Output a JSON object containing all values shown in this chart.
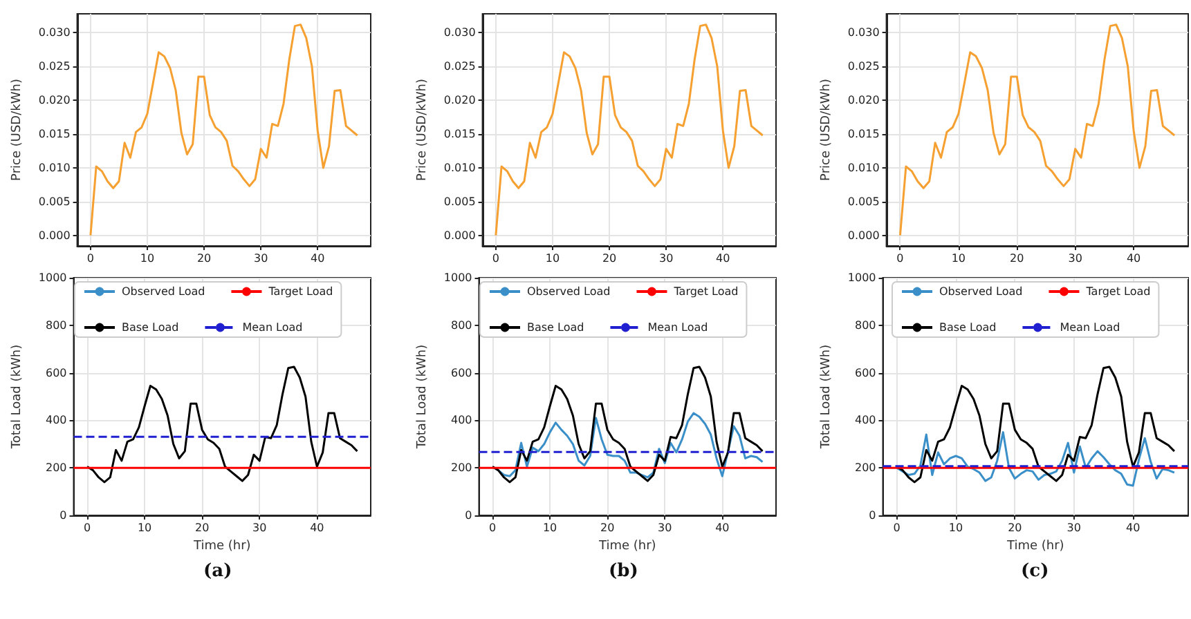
{
  "chart_data": [
    {
      "type": "line",
      "ylabel": "Price (USD/kWh)",
      "x": [
        0,
        1,
        2,
        3,
        4,
        5,
        6,
        7,
        8,
        9,
        10,
        11,
        12,
        13,
        14,
        15,
        16,
        17,
        18,
        19,
        20,
        21,
        22,
        23,
        24,
        25,
        26,
        27,
        28,
        29,
        30,
        31,
        32,
        33,
        34,
        35,
        36,
        37,
        38,
        39,
        40,
        41,
        42,
        43,
        44,
        45,
        46,
        47
      ],
      "series": [
        {
          "color": "#f5a030",
          "values": [
            0.0,
            0.0102,
            0.0095,
            0.008,
            0.007,
            0.008,
            0.0137,
            0.0115,
            0.0153,
            0.016,
            0.018,
            0.0225,
            0.0271,
            0.0265,
            0.0248,
            0.0215,
            0.0152,
            0.012,
            0.0135,
            0.0235,
            0.0235,
            0.0178,
            0.016,
            0.0153,
            0.014,
            0.0103,
            0.0095,
            0.0083,
            0.0073,
            0.0083,
            0.0128,
            0.0115,
            0.0165,
            0.0162,
            0.0195,
            0.026,
            0.031,
            0.0312,
            0.0292,
            0.025,
            0.0155,
            0.01,
            0.0132,
            0.0214,
            0.0215,
            0.0162,
            0.0155,
            0.0148
          ]
        }
      ],
      "xlim": [
        -2.35,
        49.35
      ],
      "ylim": [
        -0.00156,
        0.0328
      ],
      "xticks": [
        0,
        10,
        20,
        30,
        40
      ],
      "yticks": [
        {
          "value": 0,
          "label": "0.000"
        },
        {
          "value": 0.005,
          "label": "0.005"
        },
        {
          "value": 0.01,
          "label": "0.010"
        },
        {
          "value": 0.015,
          "label": "0.015"
        },
        {
          "value": 0.02,
          "label": "0.020"
        },
        {
          "value": 0.025,
          "label": "0.025"
        },
        {
          "value": 0.03,
          "label": "0.030"
        }
      ],
      "grid": true
    },
    {
      "type": "line",
      "ylabel": "Price (USD/kWh)",
      "x": [
        0,
        1,
        2,
        3,
        4,
        5,
        6,
        7,
        8,
        9,
        10,
        11,
        12,
        13,
        14,
        15,
        16,
        17,
        18,
        19,
        20,
        21,
        22,
        23,
        24,
        25,
        26,
        27,
        28,
        29,
        30,
        31,
        32,
        33,
        34,
        35,
        36,
        37,
        38,
        39,
        40,
        41,
        42,
        43,
        44,
        45,
        46,
        47
      ],
      "series": [
        {
          "color": "#f5a030",
          "values": [
            0.0,
            0.0102,
            0.0095,
            0.008,
            0.007,
            0.008,
            0.0137,
            0.0115,
            0.0153,
            0.016,
            0.018,
            0.0225,
            0.0271,
            0.0265,
            0.0248,
            0.0215,
            0.0152,
            0.012,
            0.0135,
            0.0235,
            0.0235,
            0.0178,
            0.016,
            0.0153,
            0.014,
            0.0103,
            0.0095,
            0.0083,
            0.0073,
            0.0083,
            0.0128,
            0.0115,
            0.0165,
            0.0162,
            0.0195,
            0.026,
            0.031,
            0.0312,
            0.0292,
            0.025,
            0.0155,
            0.01,
            0.0132,
            0.0214,
            0.0215,
            0.0162,
            0.0155,
            0.0148
          ]
        }
      ],
      "xlim": [
        -2.35,
        49.35
      ],
      "ylim": [
        -0.00156,
        0.0328
      ],
      "xticks": [
        0,
        10,
        20,
        30,
        40
      ],
      "yticks": [
        {
          "value": 0,
          "label": "0.000"
        },
        {
          "value": 0.005,
          "label": "0.005"
        },
        {
          "value": 0.01,
          "label": "0.010"
        },
        {
          "value": 0.015,
          "label": "0.015"
        },
        {
          "value": 0.02,
          "label": "0.020"
        },
        {
          "value": 0.025,
          "label": "0.025"
        },
        {
          "value": 0.03,
          "label": "0.030"
        }
      ],
      "grid": true
    },
    {
      "type": "line",
      "ylabel": "Price (USD/kWh)",
      "x": [
        0,
        1,
        2,
        3,
        4,
        5,
        6,
        7,
        8,
        9,
        10,
        11,
        12,
        13,
        14,
        15,
        16,
        17,
        18,
        19,
        20,
        21,
        22,
        23,
        24,
        25,
        26,
        27,
        28,
        29,
        30,
        31,
        32,
        33,
        34,
        35,
        36,
        37,
        38,
        39,
        40,
        41,
        42,
        43,
        44,
        45,
        46,
        47
      ],
      "series": [
        {
          "color": "#f5a030",
          "values": [
            0.0,
            0.0102,
            0.0095,
            0.008,
            0.007,
            0.008,
            0.0137,
            0.0115,
            0.0153,
            0.016,
            0.018,
            0.0225,
            0.0271,
            0.0265,
            0.0248,
            0.0215,
            0.0152,
            0.012,
            0.0135,
            0.0235,
            0.0235,
            0.0178,
            0.016,
            0.0153,
            0.014,
            0.0103,
            0.0095,
            0.0083,
            0.0073,
            0.0083,
            0.0128,
            0.0115,
            0.0165,
            0.0162,
            0.0195,
            0.026,
            0.031,
            0.0312,
            0.0292,
            0.025,
            0.0155,
            0.01,
            0.0132,
            0.0214,
            0.0215,
            0.0162,
            0.0155,
            0.0148
          ]
        }
      ],
      "xlim": [
        -2.35,
        49.35
      ],
      "ylim": [
        -0.00156,
        0.0328
      ],
      "xticks": [
        0,
        10,
        20,
        30,
        40
      ],
      "yticks": [
        {
          "value": 0,
          "label": "0.000"
        },
        {
          "value": 0.005,
          "label": "0.005"
        },
        {
          "value": 0.01,
          "label": "0.010"
        },
        {
          "value": 0.015,
          "label": "0.015"
        },
        {
          "value": 0.02,
          "label": "0.020"
        },
        {
          "value": 0.025,
          "label": "0.025"
        },
        {
          "value": 0.03,
          "label": "0.030"
        }
      ],
      "grid": true
    },
    {
      "type": "line",
      "xlabel": "Time (hr)",
      "ylabel": "Total Load (kWh)",
      "x": [
        0,
        1,
        2,
        3,
        4,
        5,
        6,
        7,
        8,
        9,
        10,
        11,
        12,
        13,
        14,
        15,
        16,
        17,
        18,
        19,
        20,
        21,
        22,
        23,
        24,
        25,
        26,
        27,
        28,
        29,
        30,
        31,
        32,
        33,
        34,
        35,
        36,
        37,
        38,
        39,
        40,
        41,
        42,
        43,
        44,
        45,
        46,
        47
      ],
      "series": [
        {
          "name": "Observed Load",
          "color": "#3a8fc9",
          "values": [
            null,
            null,
            null,
            null,
            null,
            null,
            null,
            null,
            null,
            null,
            null,
            null,
            null,
            null,
            null,
            null,
            null,
            null,
            null,
            null,
            null,
            null,
            null,
            null,
            null,
            null,
            null,
            null,
            null,
            null,
            null,
            null,
            null,
            null,
            null,
            null,
            null,
            null,
            null,
            null,
            null,
            null,
            null,
            null,
            null,
            null,
            null,
            null
          ]
        },
        {
          "name": "Base Load",
          "color": "#000000",
          "values": [
            205,
            190,
            160,
            140,
            160,
            275,
            230,
            310,
            320,
            370,
            460,
            545,
            530,
            490,
            420,
            300,
            240,
            270,
            470,
            470,
            360,
            320,
            305,
            280,
            205,
            185,
            165,
            145,
            170,
            255,
            230,
            330,
            325,
            380,
            510,
            620,
            625,
            580,
            500,
            310,
            205,
            265,
            430,
            430,
            325,
            310,
            295,
            270
          ]
        }
      ],
      "ref_lines": [
        {
          "axis": "y",
          "value": 200,
          "label": "Target Load",
          "color": "#ff0000",
          "line_style": "solid"
        },
        {
          "axis": "y",
          "value": 331,
          "label": "Mean Load",
          "color": "#2020d0",
          "line_style": "dashed"
        }
      ],
      "xlim": [
        -2.35,
        49.35
      ],
      "ylim": [
        0,
        1000
      ],
      "xticks": [
        0,
        10,
        20,
        30,
        40
      ],
      "yticks": [
        0,
        200,
        400,
        600,
        800,
        1000
      ],
      "grid": true,
      "legend": "top",
      "annotations": [
        "(a)"
      ]
    },
    {
      "type": "line",
      "xlabel": "Time (hr)",
      "ylabel": "Total Load (kWh)",
      "x": [
        0,
        1,
        2,
        3,
        4,
        5,
        6,
        7,
        8,
        9,
        10,
        11,
        12,
        13,
        14,
        15,
        16,
        17,
        18,
        19,
        20,
        21,
        22,
        23,
        24,
        25,
        26,
        27,
        28,
        29,
        30,
        31,
        32,
        33,
        34,
        35,
        36,
        37,
        38,
        39,
        40,
        41,
        42,
        43,
        44,
        45,
        46,
        47
      ],
      "series": [
        {
          "name": "Observed Load",
          "color": "#3a8fc9",
          "values": [
            205,
            190,
            170,
            165,
            190,
            305,
            205,
            285,
            270,
            300,
            350,
            390,
            360,
            335,
            300,
            230,
            210,
            250,
            410,
            320,
            255,
            250,
            250,
            230,
            180,
            180,
            170,
            160,
            180,
            280,
            220,
            305,
            265,
            320,
            395,
            430,
            415,
            385,
            340,
            240,
            165,
            270,
            375,
            335,
            240,
            250,
            245,
            225
          ]
        },
        {
          "name": "Base Load",
          "color": "#000000",
          "values": [
            205,
            190,
            160,
            140,
            160,
            275,
            230,
            310,
            320,
            370,
            460,
            545,
            530,
            490,
            420,
            300,
            240,
            270,
            470,
            470,
            360,
            320,
            305,
            280,
            205,
            185,
            165,
            145,
            170,
            255,
            230,
            330,
            325,
            380,
            510,
            620,
            625,
            580,
            500,
            310,
            205,
            265,
            430,
            430,
            325,
            310,
            295,
            270
          ]
        }
      ],
      "ref_lines": [
        {
          "axis": "y",
          "value": 200,
          "label": "Target Load",
          "color": "#ff0000",
          "line_style": "solid"
        },
        {
          "axis": "y",
          "value": 267,
          "label": "Mean Load",
          "color": "#2020d0",
          "line_style": "dashed"
        }
      ],
      "xlim": [
        -2.35,
        49.35
      ],
      "ylim": [
        0,
        1000
      ],
      "xticks": [
        0,
        10,
        20,
        30,
        40
      ],
      "yticks": [
        0,
        200,
        400,
        600,
        800,
        1000
      ],
      "grid": true,
      "legend": "top",
      "annotations": [
        "(b)"
      ]
    },
    {
      "type": "line",
      "xlabel": "Time (hr)",
      "ylabel": "Total Load (kWh)",
      "x": [
        0,
        1,
        2,
        3,
        4,
        5,
        6,
        7,
        8,
        9,
        10,
        11,
        12,
        13,
        14,
        15,
        16,
        17,
        18,
        19,
        20,
        21,
        22,
        23,
        24,
        25,
        26,
        27,
        28,
        29,
        30,
        31,
        32,
        33,
        34,
        35,
        36,
        37,
        38,
        39,
        40,
        41,
        42,
        43,
        44,
        45,
        46,
        47
      ],
      "series": [
        {
          "name": "Observed Load",
          "color": "#3a8fc9",
          "values": [
            200,
            185,
            170,
            175,
            210,
            340,
            170,
            265,
            215,
            240,
            250,
            240,
            205,
            195,
            180,
            145,
            160,
            230,
            350,
            200,
            155,
            175,
            190,
            185,
            150,
            170,
            175,
            185,
            230,
            305,
            180,
            290,
            200,
            240,
            270,
            245,
            215,
            190,
            175,
            130,
            125,
            235,
            325,
            225,
            155,
            195,
            190,
            180
          ]
        },
        {
          "name": "Base Load",
          "color": "#000000",
          "values": [
            205,
            190,
            160,
            140,
            160,
            275,
            230,
            310,
            320,
            370,
            460,
            545,
            530,
            490,
            420,
            300,
            240,
            270,
            470,
            470,
            360,
            320,
            305,
            280,
            205,
            185,
            165,
            145,
            170,
            255,
            230,
            330,
            325,
            380,
            510,
            620,
            625,
            580,
            500,
            310,
            205,
            265,
            430,
            430,
            325,
            310,
            295,
            270
          ]
        }
      ],
      "ref_lines": [
        {
          "axis": "y",
          "value": 200,
          "label": "Target Load",
          "color": "#ff0000",
          "line_style": "solid"
        },
        {
          "axis": "y",
          "value": 207,
          "label": "Mean Load",
          "color": "#2020d0",
          "line_style": "dashed"
        }
      ],
      "xlim": [
        -2.35,
        49.35
      ],
      "ylim": [
        0,
        1000
      ],
      "xticks": [
        0,
        10,
        20,
        30,
        40
      ],
      "yticks": [
        0,
        200,
        400,
        600,
        800,
        1000
      ],
      "grid": true,
      "legend": "top",
      "annotations": [
        "(c)"
      ]
    }
  ]
}
